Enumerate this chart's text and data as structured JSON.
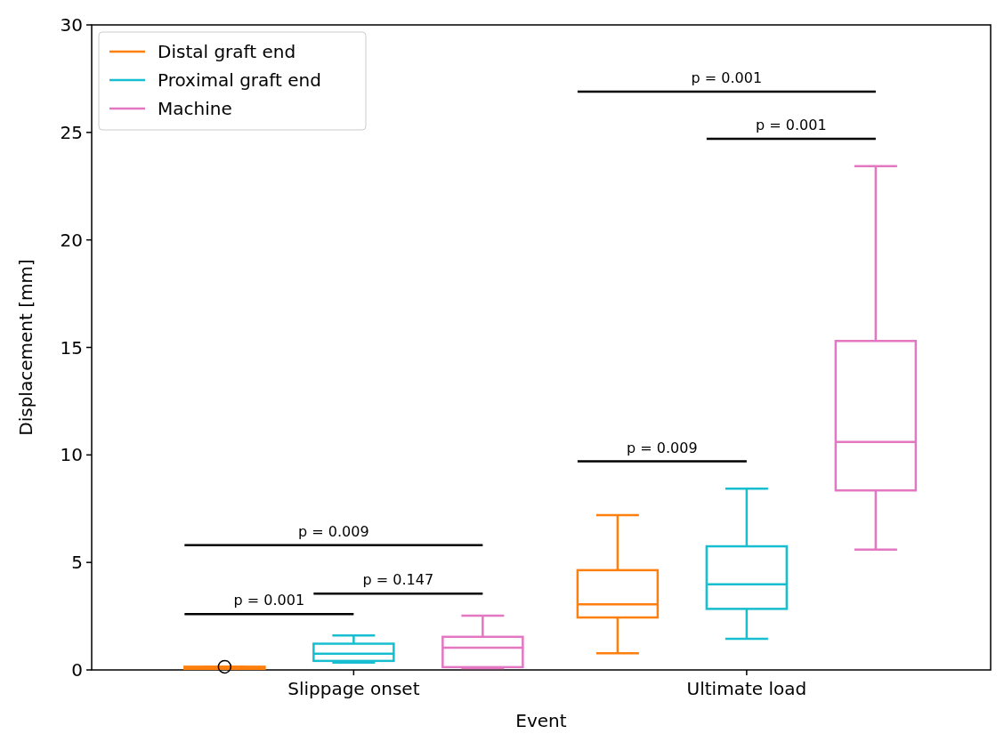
{
  "chart_data": {
    "type": "box",
    "xlabel": "Event",
    "ylabel": "Displacement [mm]",
    "categories": [
      "Slippage onset",
      "Ultimate load"
    ],
    "ylim": [
      0,
      30
    ],
    "yticks": [
      0,
      5,
      10,
      15,
      20,
      25,
      30
    ],
    "legend": "top left",
    "grid": false,
    "series": [
      {
        "name": "Distal graft end",
        "color": "#ff7f0e",
        "boxes": [
          {
            "low": 0.05,
            "q1": 0.05,
            "median": 0.1,
            "q3": 0.15,
            "high": 0.15,
            "outliers": [
              0.15
            ]
          },
          {
            "low": 0.78,
            "q1": 2.44,
            "median": 3.05,
            "q3": 4.64,
            "high": 7.2
          }
        ]
      },
      {
        "name": "Proximal graft end",
        "color": "#17becf",
        "boxes": [
          {
            "low": 0.34,
            "q1": 0.42,
            "median": 0.76,
            "q3": 1.22,
            "high": 1.6
          },
          {
            "low": 1.45,
            "q1": 2.84,
            "median": 3.98,
            "q3": 5.75,
            "high": 8.43
          }
        ]
      },
      {
        "name": "Machine",
        "color": "#e377c2",
        "boxes": [
          {
            "low": 0.08,
            "q1": 0.13,
            "median": 1.03,
            "q3": 1.54,
            "high": 2.52
          },
          {
            "low": 5.6,
            "q1": 8.35,
            "median": 10.6,
            "q3": 15.3,
            "high": 23.43
          }
        ]
      }
    ],
    "annotations": [
      "p = 0.001",
      "p = 0.147",
      "p = 0.009",
      "p = 0.009",
      "p = 0.001",
      "p = 0.001"
    ]
  }
}
